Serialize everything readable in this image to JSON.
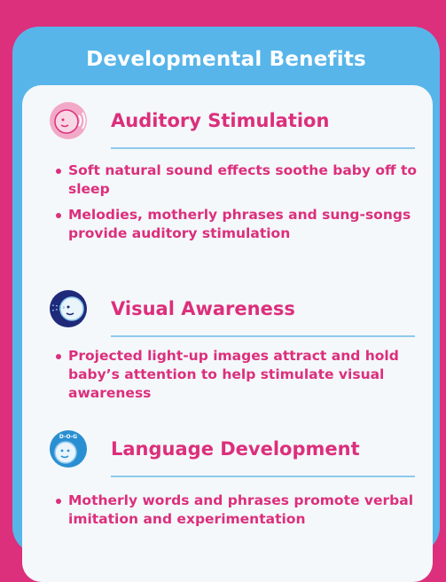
{
  "title": "Developmental Benefits",
  "colors": {
    "background": "#dc2f7c",
    "panel": "#57b5ea",
    "card": "#f4f8fb",
    "text": "#dc2f7c",
    "rule": "#8ec9ec"
  },
  "sections": [
    {
      "icon": "baby-hearing-icon",
      "heading": "Auditory Stimulation",
      "bullets": [
        "Soft natural sound effects soothe baby off to sleep",
        "Melodies, motherly phrases and sung-songs provide auditory stimulation"
      ]
    },
    {
      "icon": "baby-seeing-icon",
      "heading": "Visual Awareness",
      "bullets": [
        "Projected light-up images attract and hold baby’s attention to help stimulate visual awareness"
      ]
    },
    {
      "icon": "baby-speaking-icon",
      "icon_text": "D-O-G",
      "heading": "Language Development",
      "bullets": [
        "Motherly words and phrases promote verbal imitation and experimentation"
      ]
    }
  ]
}
